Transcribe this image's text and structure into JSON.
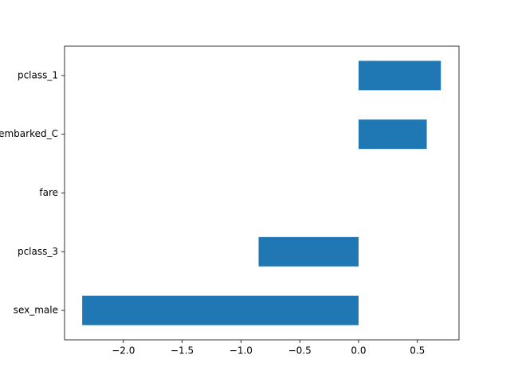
{
  "chart_data": {
    "type": "barh",
    "categories": [
      "sex_male",
      "pclass_3",
      "fare",
      "embarked_C",
      "pclass_1"
    ],
    "values": [
      -2.35,
      -0.85,
      0.0,
      0.58,
      0.7
    ],
    "color": "#1f77b4",
    "xlim": [
      -2.5,
      0.854
    ],
    "xticks": [
      {
        "value": -2,
        "label": "−2.0"
      },
      {
        "value": -1.5,
        "label": "−1.5"
      },
      {
        "value": -1,
        "label": "−1.0"
      },
      {
        "value": -0.5,
        "label": "−0.5"
      },
      {
        "value": 0,
        "label": "0.0"
      },
      0.5
    ],
    "grid": false
  }
}
